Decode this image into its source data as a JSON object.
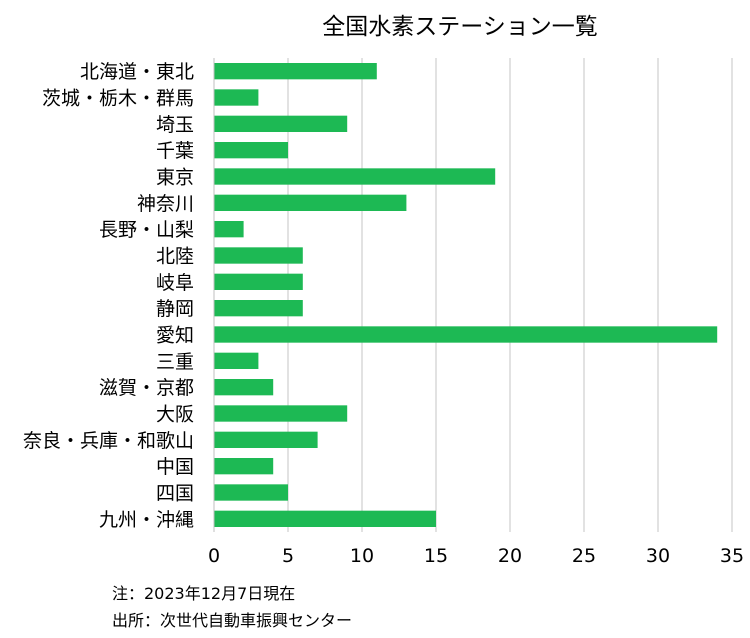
{
  "chart_data": {
    "type": "bar",
    "orientation": "horizontal",
    "title": "全国水素ステーション一覧",
    "categories": [
      "北海道・東北",
      "茨城・栃木・群馬",
      "埼玉",
      "千葉",
      "東京",
      "神奈川",
      "長野・山梨",
      "北陸",
      "岐阜",
      "静岡",
      "愛知",
      "三重",
      "滋賀・京都",
      "大阪",
      "奈良・兵庫・和歌山",
      "中国",
      "四国",
      "九州・沖縄"
    ],
    "values": [
      11,
      3,
      9,
      5,
      19,
      13,
      2,
      6,
      6,
      6,
      34,
      3,
      4,
      9,
      7,
      4,
      5,
      15
    ],
    "xlim": [
      0,
      35
    ],
    "xticks": [
      0,
      5,
      10,
      15,
      20,
      25,
      30,
      35
    ],
    "grid": true,
    "bar_color": "#1db954"
  },
  "notes": {
    "note": "注：2023年12月7日現在",
    "source": "出所：次世代自動車振興センター"
  }
}
